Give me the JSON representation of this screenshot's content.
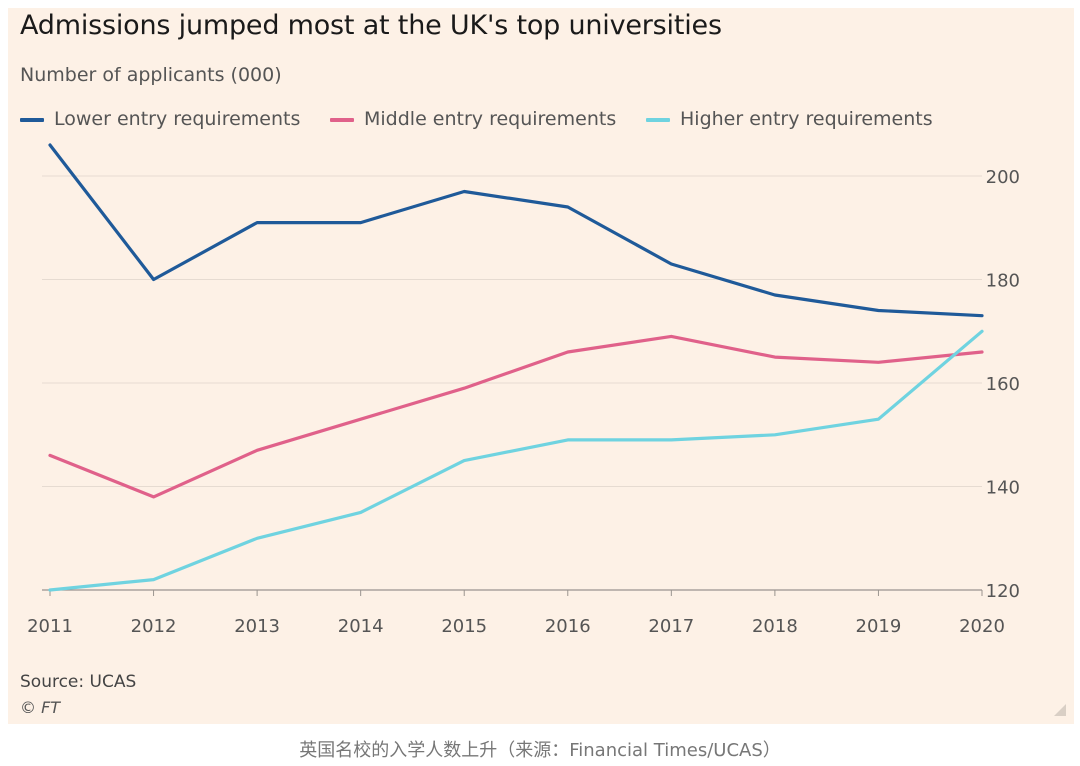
{
  "chart_data": {
    "type": "line",
    "title": "Admissions jumped most at the UK's top universities",
    "subtitle": "Number of applicants (000)",
    "x": [
      2011,
      2012,
      2013,
      2014,
      2015,
      2016,
      2017,
      2018,
      2019,
      2020
    ],
    "series": [
      {
        "name": "Lower entry requirements",
        "color": "#1f5a99",
        "values": [
          206,
          180,
          191,
          191,
          197,
          194,
          183,
          177,
          174,
          173
        ]
      },
      {
        "name": "Middle entry requirements",
        "color": "#e0618a",
        "values": [
          146,
          138,
          147,
          153,
          159,
          166,
          169,
          165,
          164,
          166
        ]
      },
      {
        "name": "Higher entry requirements",
        "color": "#6fd3e0",
        "values": [
          120,
          122,
          130,
          135,
          145,
          149,
          149,
          150,
          153,
          170
        ]
      }
    ],
    "ylim": [
      120,
      200
    ],
    "y_ticks": [
      120,
      140,
      160,
      180,
      200
    ],
    "x_ticks": [
      "2011",
      "2012",
      "2013",
      "2014",
      "2015",
      "2016",
      "2017",
      "2018",
      "2019",
      "2020"
    ],
    "y_axis_side": "right",
    "grid": true,
    "legend": "top-left"
  },
  "source": "Source: UCAS",
  "copyright": "© FT",
  "caption": "英国名校的入学人数上升（来源：Financial Times/UCAS）",
  "colors": {
    "background": "#fdf1e6",
    "grid": "#e6dbd1",
    "text": "#555555"
  }
}
